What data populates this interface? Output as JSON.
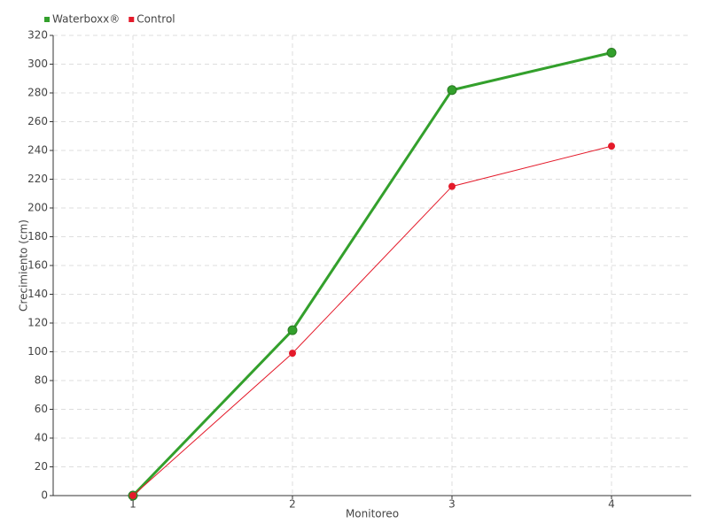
{
  "chart_data": {
    "type": "line",
    "x_label": "Monitoreo",
    "y_label": "Crecimiento (cm)",
    "categories": [
      "1",
      "2",
      "3",
      "4"
    ],
    "series": [
      {
        "name": "Waterboxx®",
        "color": "#33a02c",
        "values": [
          0,
          115,
          282,
          308
        ]
      },
      {
        "name": "Control",
        "color": "#e41a2a",
        "values": [
          0,
          99,
          215,
          243
        ]
      }
    ],
    "ylim": [
      0,
      320
    ],
    "yticks": [
      0,
      20,
      40,
      60,
      80,
      100,
      120,
      140,
      160,
      180,
      200,
      220,
      240,
      260,
      280,
      300,
      320
    ],
    "grid": true,
    "legend": "top-left"
  }
}
